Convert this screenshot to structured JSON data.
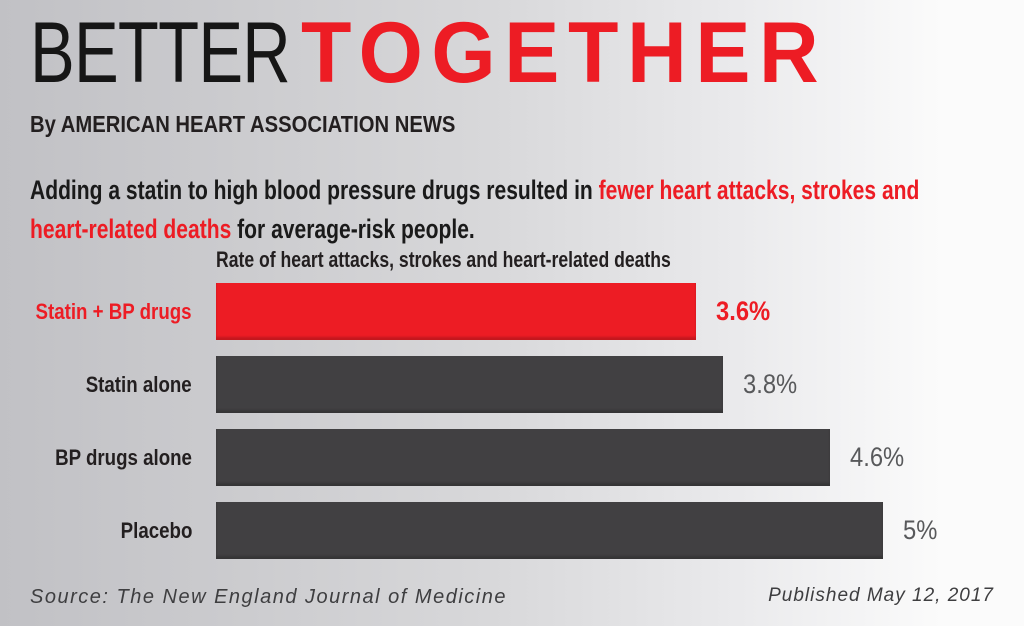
{
  "header": {
    "title_black": "BETTER",
    "title_red": "TOGETHER",
    "byline": "By AMERICAN HEART ASSOCIATION NEWS"
  },
  "intro": {
    "part1": "Adding a statin to high blood pressure drugs resulted in ",
    "part2_red": "fewer heart attacks, strokes and heart-related deaths",
    "part3": " for average-risk people."
  },
  "chart_data": {
    "type": "bar",
    "orientation": "horizontal",
    "title": "Rate of heart attacks, strokes and heart-related deaths",
    "categories": [
      "Statin + BP drugs",
      "Statin alone",
      "BP drugs alone",
      "Placebo"
    ],
    "values": [
      3.6,
      3.8,
      4.6,
      5
    ],
    "value_labels": [
      "3.6%",
      "3.8%",
      "4.6%",
      "5%"
    ],
    "xlim": [
      0,
      5
    ],
    "grid": false,
    "legend": "none",
    "highlight_index": 0,
    "highlight_color": "#ed1c24",
    "bar_color": "#414042"
  },
  "footer": {
    "source": "Source: The New England Journal of Medicine",
    "published": "Published May 12, 2017"
  },
  "colors": {
    "accent_red": "#ed1c24",
    "bar_gray": "#414042",
    "text_black": "#231f20",
    "value_gray": "#58595b",
    "background_left": "#c1c1c5",
    "background_right": "#fbfbfb"
  }
}
